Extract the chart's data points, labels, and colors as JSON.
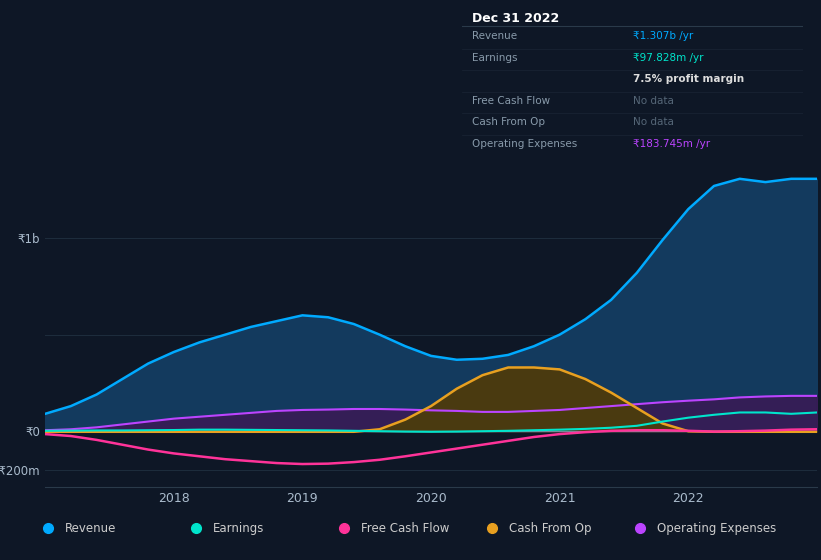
{
  "bg_color": "#0e1726",
  "plot_bg_color": "#0e1726",
  "grid_color": "#1e2d3d",
  "x_years": [
    2017.0,
    2017.2,
    2017.4,
    2017.6,
    2017.8,
    2018.0,
    2018.2,
    2018.4,
    2018.6,
    2018.8,
    2019.0,
    2019.2,
    2019.4,
    2019.6,
    2019.8,
    2020.0,
    2020.2,
    2020.4,
    2020.6,
    2020.8,
    2021.0,
    2021.2,
    2021.4,
    2021.6,
    2021.8,
    2022.0,
    2022.2,
    2022.4,
    2022.6,
    2022.8,
    2023.0
  ],
  "revenue": [
    90,
    130,
    190,
    270,
    350,
    410,
    460,
    500,
    540,
    570,
    600,
    590,
    555,
    500,
    440,
    390,
    370,
    375,
    395,
    440,
    500,
    580,
    680,
    820,
    990,
    1150,
    1270,
    1307,
    1290,
    1307,
    1307
  ],
  "earnings": [
    2,
    3,
    4,
    4,
    5,
    6,
    8,
    8,
    7,
    6,
    5,
    4,
    2,
    0,
    -2,
    -3,
    -2,
    0,
    2,
    5,
    8,
    12,
    18,
    28,
    50,
    70,
    85,
    97,
    97,
    90,
    97
  ],
  "free_cash_flow": [
    -15,
    -25,
    -45,
    -70,
    -95,
    -115,
    -130,
    -145,
    -155,
    -165,
    -170,
    -168,
    -160,
    -148,
    -130,
    -110,
    -90,
    -70,
    -50,
    -30,
    -15,
    -5,
    2,
    5,
    5,
    2,
    -2,
    0,
    3,
    8,
    10
  ],
  "cash_from_op": [
    -3,
    -3,
    -3,
    -3,
    -3,
    -3,
    -3,
    -3,
    -3,
    -3,
    -3,
    -3,
    -3,
    10,
    60,
    130,
    220,
    290,
    330,
    330,
    320,
    270,
    200,
    120,
    40,
    0,
    -3,
    -3,
    -3,
    -3,
    -3
  ],
  "operating_expenses": [
    5,
    10,
    20,
    35,
    50,
    65,
    75,
    85,
    95,
    105,
    110,
    112,
    115,
    115,
    112,
    108,
    105,
    100,
    100,
    105,
    110,
    120,
    130,
    140,
    150,
    158,
    165,
    175,
    180,
    183,
    183
  ],
  "revenue_color": "#00aaff",
  "revenue_fill": "#133a5e",
  "earnings_color": "#00e5cc",
  "free_cash_flow_color": "#ff3399",
  "cash_from_op_color": "#e8a020",
  "cash_from_op_fill": "#4a3a10",
  "operating_expenses_color": "#bb44ff",
  "operating_expenses_fill": "#3a1a55",
  "ylim_min": -290,
  "ylim_max": 1450,
  "xlabel_ticks": [
    2018,
    2019,
    2020,
    2021,
    2022
  ],
  "zero_line_color": "#778899",
  "tooltip_date": "Dec 31 2022",
  "tooltip_revenue_label": "Revenue",
  "tooltip_revenue_val": "₹1.307b /yr",
  "tooltip_earnings_label": "Earnings",
  "tooltip_earnings_val": "₹97.828m /yr",
  "tooltip_margin_val": "7.5% profit margin",
  "tooltip_fcf_label": "Free Cash Flow",
  "tooltip_fcf_val": "No data",
  "tooltip_cashop_label": "Cash From Op",
  "tooltip_cashop_val": "No data",
  "tooltip_opex_label": "Operating Expenses",
  "tooltip_opex_val": "₹183.745m /yr",
  "legend_items": [
    "Revenue",
    "Earnings",
    "Free Cash Flow",
    "Cash From Op",
    "Operating Expenses"
  ],
  "legend_colors": [
    "#00aaff",
    "#00e5cc",
    "#ff3399",
    "#e8a020",
    "#bb44ff"
  ]
}
